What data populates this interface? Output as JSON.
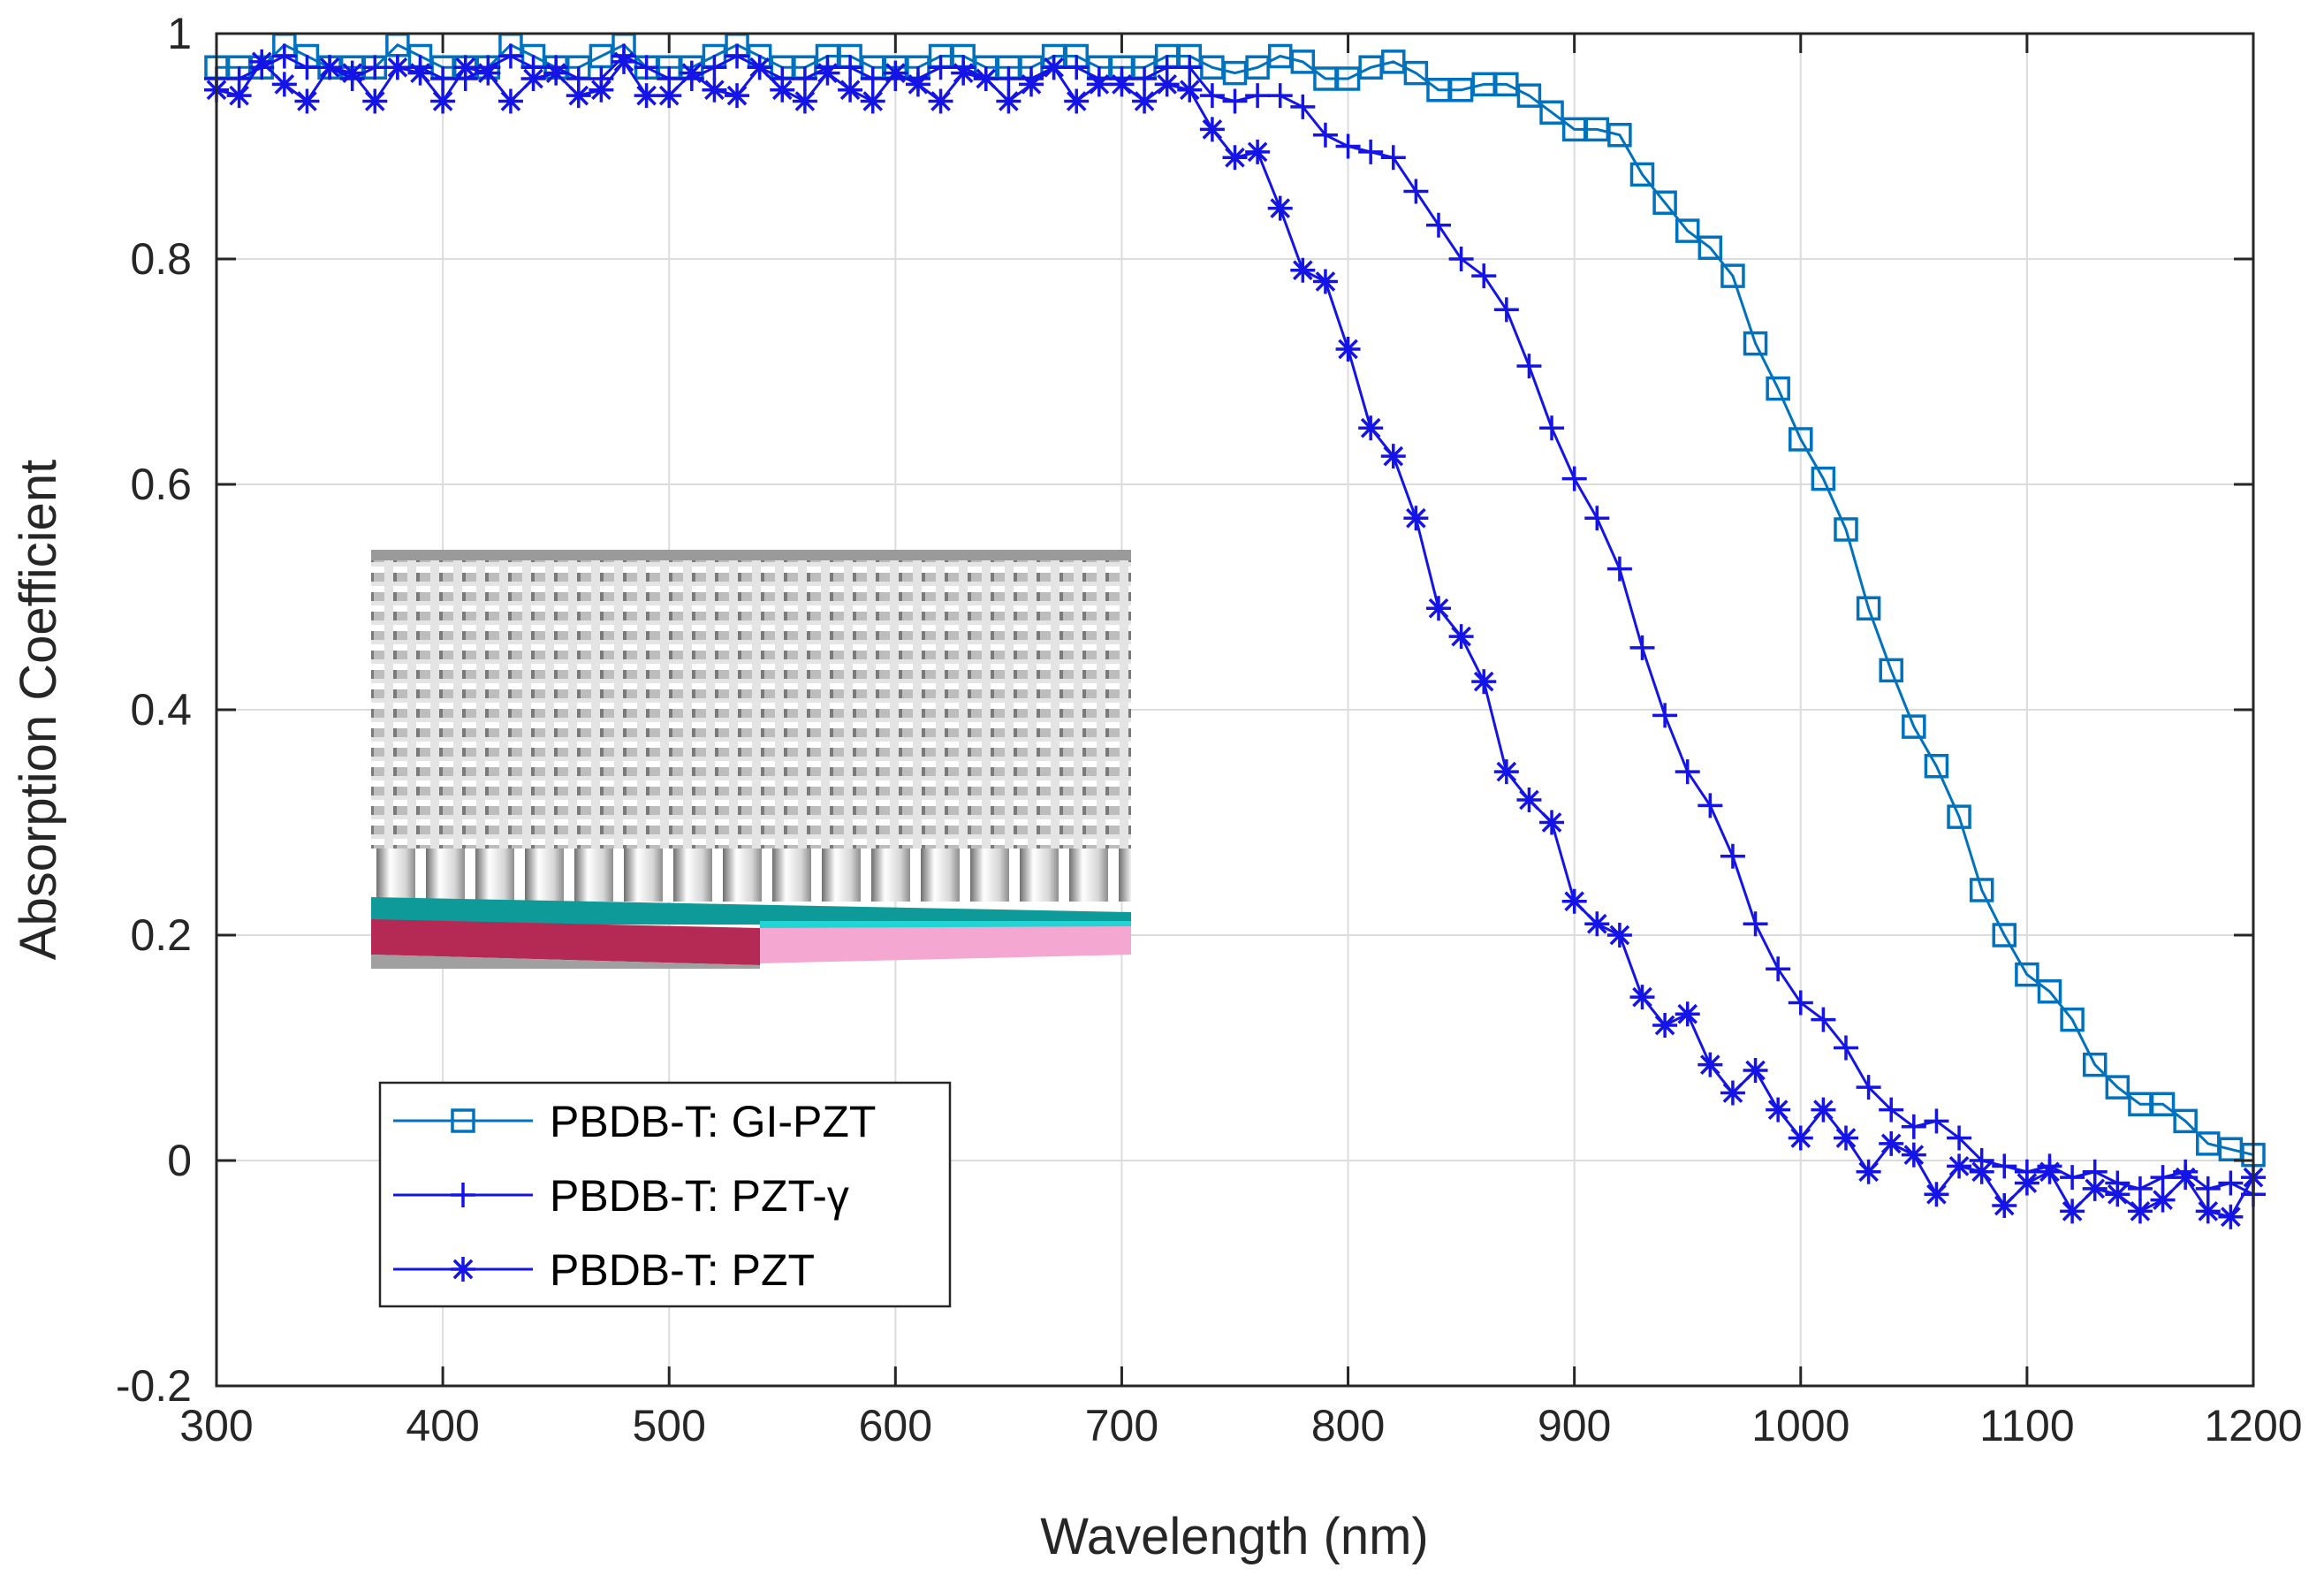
{
  "chart_data": {
    "type": "line",
    "title": "",
    "xlabel": "Wavelength (nm)",
    "ylabel": "Absorption Coefficient",
    "xlim": [
      300,
      1200
    ],
    "ylim": [
      -0.2,
      1
    ],
    "xticks": [
      300,
      400,
      500,
      600,
      700,
      800,
      900,
      1000,
      1100,
      1200
    ],
    "yticks": [
      -0.2,
      0,
      0.2,
      0.4,
      0.6,
      0.8,
      1
    ],
    "ytick_labels": [
      "-0.2",
      "0",
      "0.2",
      "0.4",
      "0.6",
      "0.8",
      "1"
    ],
    "grid": true,
    "legend_position": "lower-left",
    "inset": "3D nanostructure image",
    "series": [
      {
        "name": "PBDB-T: GI-PZT",
        "marker": "square",
        "color": "#0072BD",
        "x": [
          300,
          310,
          320,
          330,
          340,
          350,
          360,
          370,
          380,
          390,
          400,
          410,
          420,
          430,
          440,
          450,
          460,
          470,
          480,
          490,
          500,
          510,
          520,
          530,
          540,
          550,
          560,
          570,
          580,
          590,
          600,
          610,
          620,
          630,
          640,
          650,
          660,
          670,
          680,
          690,
          700,
          710,
          720,
          730,
          740,
          750,
          760,
          770,
          780,
          790,
          800,
          810,
          820,
          830,
          840,
          850,
          860,
          870,
          880,
          890,
          900,
          910,
          920,
          930,
          940,
          950,
          960,
          970,
          980,
          990,
          1000,
          1010,
          1020,
          1030,
          1040,
          1050,
          1060,
          1070,
          1080,
          1090,
          1100,
          1110,
          1120,
          1130,
          1140,
          1150,
          1160,
          1170,
          1180,
          1190,
          1200
        ],
        "y": [
          0.97,
          0.97,
          0.97,
          0.99,
          0.98,
          0.97,
          0.97,
          0.97,
          0.99,
          0.98,
          0.97,
          0.97,
          0.97,
          0.99,
          0.98,
          0.97,
          0.97,
          0.98,
          0.99,
          0.97,
          0.97,
          0.97,
          0.98,
          0.99,
          0.98,
          0.97,
          0.97,
          0.98,
          0.98,
          0.97,
          0.97,
          0.97,
          0.98,
          0.98,
          0.97,
          0.97,
          0.97,
          0.98,
          0.98,
          0.97,
          0.97,
          0.97,
          0.98,
          0.98,
          0.97,
          0.965,
          0.97,
          0.98,
          0.975,
          0.96,
          0.96,
          0.97,
          0.975,
          0.965,
          0.95,
          0.95,
          0.955,
          0.955,
          0.945,
          0.93,
          0.915,
          0.915,
          0.91,
          0.875,
          0.85,
          0.825,
          0.81,
          0.785,
          0.725,
          0.685,
          0.64,
          0.605,
          0.56,
          0.49,
          0.435,
          0.385,
          0.35,
          0.305,
          0.24,
          0.2,
          0.165,
          0.15,
          0.125,
          0.085,
          0.065,
          0.05,
          0.05,
          0.035,
          0.015,
          0.01,
          0.005
        ]
      },
      {
        "name": "PBDB-T: PZT-γ",
        "marker": "plus",
        "color": "#1414E6",
        "x": [
          300,
          310,
          320,
          330,
          340,
          350,
          360,
          370,
          380,
          390,
          400,
          410,
          420,
          430,
          440,
          450,
          460,
          470,
          480,
          490,
          500,
          510,
          520,
          530,
          540,
          550,
          560,
          570,
          580,
          590,
          600,
          610,
          620,
          630,
          640,
          650,
          660,
          670,
          680,
          690,
          700,
          710,
          720,
          730,
          740,
          750,
          760,
          770,
          780,
          790,
          800,
          810,
          820,
          830,
          840,
          850,
          860,
          870,
          880,
          890,
          900,
          910,
          920,
          930,
          940,
          950,
          960,
          970,
          980,
          990,
          1000,
          1010,
          1020,
          1030,
          1040,
          1050,
          1060,
          1070,
          1080,
          1090,
          1100,
          1110,
          1120,
          1130,
          1140,
          1150,
          1160,
          1170,
          1180,
          1190,
          1200
        ],
        "y": [
          0.96,
          0.96,
          0.97,
          0.98,
          0.97,
          0.97,
          0.96,
          0.97,
          0.97,
          0.97,
          0.96,
          0.96,
          0.97,
          0.98,
          0.97,
          0.97,
          0.96,
          0.96,
          0.98,
          0.97,
          0.96,
          0.96,
          0.97,
          0.98,
          0.97,
          0.96,
          0.96,
          0.97,
          0.97,
          0.96,
          0.96,
          0.96,
          0.97,
          0.97,
          0.96,
          0.96,
          0.96,
          0.97,
          0.97,
          0.96,
          0.96,
          0.96,
          0.97,
          0.97,
          0.945,
          0.94,
          0.945,
          0.945,
          0.935,
          0.91,
          0.9,
          0.895,
          0.89,
          0.86,
          0.83,
          0.8,
          0.785,
          0.755,
          0.705,
          0.65,
          0.605,
          0.57,
          0.525,
          0.455,
          0.395,
          0.345,
          0.315,
          0.27,
          0.21,
          0.17,
          0.14,
          0.125,
          0.1,
          0.065,
          0.045,
          0.03,
          0.035,
          0.02,
          0.0,
          -0.005,
          -0.01,
          -0.005,
          -0.015,
          -0.01,
          -0.02,
          -0.025,
          -0.015,
          -0.01,
          -0.025,
          -0.02,
          -0.03
        ]
      },
      {
        "name": "PBDB-T: PZT",
        "marker": "asterisk",
        "color": "#1414E6",
        "x": [
          300,
          310,
          320,
          330,
          340,
          350,
          360,
          370,
          380,
          390,
          400,
          410,
          420,
          430,
          440,
          450,
          460,
          470,
          480,
          490,
          500,
          510,
          520,
          530,
          540,
          550,
          560,
          570,
          580,
          590,
          600,
          610,
          620,
          630,
          640,
          650,
          660,
          670,
          680,
          690,
          700,
          710,
          720,
          730,
          740,
          750,
          760,
          770,
          780,
          790,
          800,
          810,
          820,
          830,
          840,
          850,
          860,
          870,
          880,
          890,
          900,
          910,
          920,
          930,
          940,
          950,
          960,
          970,
          980,
          990,
          1000,
          1010,
          1020,
          1030,
          1040,
          1050,
          1060,
          1070,
          1080,
          1090,
          1100,
          1110,
          1120,
          1130,
          1140,
          1150,
          1160,
          1170,
          1180,
          1190,
          1200
        ],
        "y": [
          0.95,
          0.945,
          0.975,
          0.955,
          0.94,
          0.97,
          0.965,
          0.94,
          0.97,
          0.965,
          0.94,
          0.97,
          0.965,
          0.94,
          0.96,
          0.965,
          0.945,
          0.95,
          0.975,
          0.945,
          0.945,
          0.965,
          0.95,
          0.945,
          0.97,
          0.95,
          0.94,
          0.965,
          0.95,
          0.94,
          0.965,
          0.955,
          0.94,
          0.965,
          0.96,
          0.94,
          0.955,
          0.97,
          0.94,
          0.955,
          0.955,
          0.94,
          0.955,
          0.95,
          0.915,
          0.89,
          0.895,
          0.845,
          0.79,
          0.78,
          0.72,
          0.65,
          0.625,
          0.57,
          0.49,
          0.465,
          0.425,
          0.345,
          0.32,
          0.3,
          0.23,
          0.21,
          0.2,
          0.145,
          0.12,
          0.13,
          0.085,
          0.06,
          0.08,
          0.045,
          0.02,
          0.045,
          0.02,
          -0.01,
          0.015,
          0.005,
          -0.03,
          -0.005,
          -0.01,
          -0.04,
          -0.02,
          -0.01,
          -0.045,
          -0.025,
          -0.03,
          -0.045,
          -0.035,
          -0.015,
          -0.045,
          -0.05,
          -0.015
        ]
      }
    ]
  }
}
